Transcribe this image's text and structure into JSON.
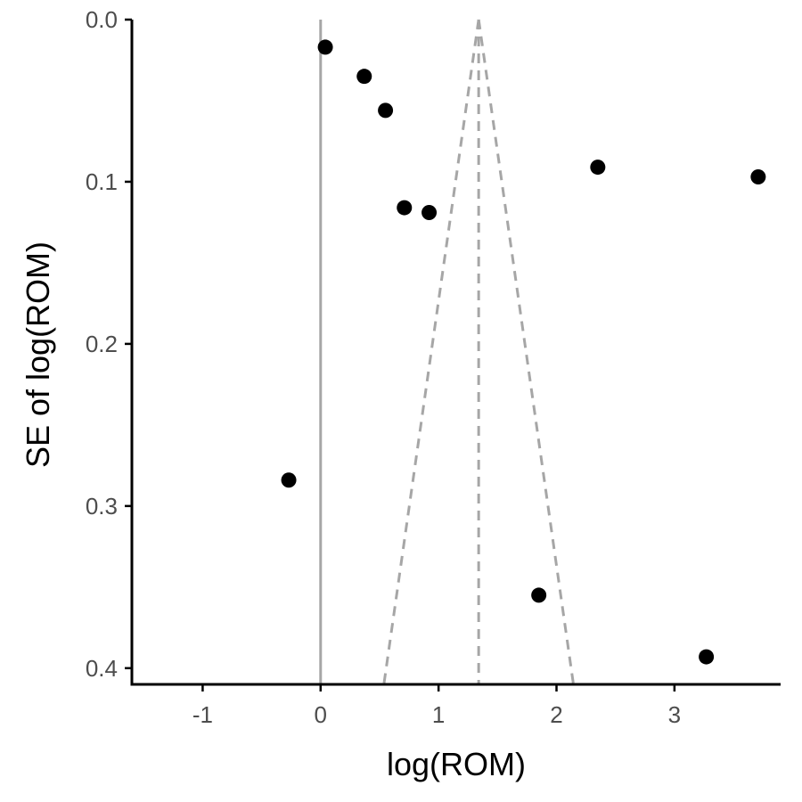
{
  "chart_data": {
    "type": "scatter",
    "title": "",
    "xlabel": "log(ROM)",
    "ylabel": "SE of log(ROM)",
    "xlim": [
      -1.6,
      3.9
    ],
    "ylim": [
      0.0,
      0.41
    ],
    "y_reversed": true,
    "x_ticks": [
      -1,
      0,
      1,
      2,
      3
    ],
    "x_tick_labels": [
      "-1",
      "0",
      "1",
      "2",
      "3"
    ],
    "y_ticks": [
      0.0,
      0.1,
      0.2,
      0.3,
      0.4
    ],
    "y_tick_labels": [
      "0.0",
      "0.1",
      "0.2",
      "0.3",
      "0.4"
    ],
    "grid": false,
    "legend": "none",
    "points": [
      {
        "x": 0.04,
        "y": 0.017
      },
      {
        "x": 0.37,
        "y": 0.035
      },
      {
        "x": 0.55,
        "y": 0.056
      },
      {
        "x": 0.71,
        "y": 0.116
      },
      {
        "x": 0.92,
        "y": 0.119
      },
      {
        "x": 2.35,
        "y": 0.091
      },
      {
        "x": 3.71,
        "y": 0.097
      },
      {
        "x": -0.27,
        "y": 0.284
      },
      {
        "x": 1.85,
        "y": 0.355
      },
      {
        "x": 3.27,
        "y": 0.393
      }
    ],
    "reference_lines": {
      "null_effect_x": 0,
      "pooled_estimate_x": 1.34,
      "funnel": {
        "center_x": 1.34,
        "z": 1.96,
        "se_max": 0.41
      }
    },
    "colors": {
      "points": "#000000",
      "null_line": "#a6a6a6",
      "funnel_lines": "#a6a6a6",
      "axes": "#000000",
      "tick_labels": "#4d4d4d"
    }
  }
}
